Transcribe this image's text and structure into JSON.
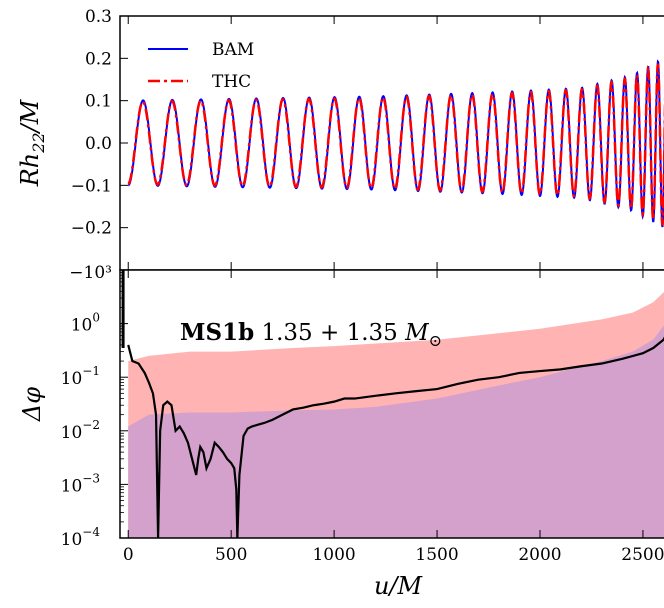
{
  "chart_data": [
    {
      "type": "line",
      "panel": "top",
      "xlabel": "",
      "ylabel": "Rh22/M",
      "ylabel_main": "Rh",
      "ylabel_sub": "22",
      "ylabel_tail": "/M",
      "xlim": [
        -40,
        2680
      ],
      "ylim": [
        -0.3,
        0.3
      ],
      "yticks": [
        {
          "v": 0.3,
          "label": "0.3"
        },
        {
          "v": 0.2,
          "label": "0.2"
        },
        {
          "v": 0.1,
          "label": "0.1"
        },
        {
          "v": 0.0,
          "label": "0.0"
        },
        {
          "v": -0.1,
          "label": "−0.1"
        },
        {
          "v": -0.2,
          "label": "−0.2"
        }
      ],
      "legend": {
        "position": "upper-left"
      },
      "series": [
        {
          "name": "BAM",
          "color": "#0000ff",
          "style": "solid"
        },
        {
          "name": "THC",
          "color": "#ff0000",
          "style": "dashdot"
        }
      ],
      "waveform": {
        "x_start": 0,
        "x_end": 2665,
        "initial_cycle_period": 145,
        "amplitude_points": [
          [
            0,
            0.1
          ],
          [
            600,
            0.105
          ],
          [
            1200,
            0.11
          ],
          [
            1800,
            0.12
          ],
          [
            2200,
            0.13
          ],
          [
            2450,
            0.16
          ],
          [
            2600,
            0.2
          ],
          [
            2640,
            0.22
          ],
          [
            2665,
            0.05
          ]
        ]
      }
    },
    {
      "type": "line",
      "panel": "bottom",
      "xlabel": "u/M",
      "ylabel": "Δφ",
      "yscale": "log",
      "xlim": [
        -40,
        2680
      ],
      "ylim": [
        0.0001,
        10
      ],
      "xticks": [
        {
          "v": 0,
          "label": "0"
        },
        {
          "v": 500,
          "label": "500"
        },
        {
          "v": 1000,
          "label": "1000"
        },
        {
          "v": 1500,
          "label": "1500"
        },
        {
          "v": 2000,
          "label": "2000"
        },
        {
          "v": 2500,
          "label": "2500"
        }
      ],
      "yticks": [
        {
          "v": 1,
          "base": "10",
          "exp": "0"
        },
        {
          "v": 0.1,
          "base": "10",
          "exp": "−1"
        },
        {
          "v": 0.01,
          "base": "10",
          "exp": "−2"
        },
        {
          "v": 0.001,
          "base": "10",
          "exp": "−3"
        },
        {
          "v": 0.0001,
          "base": "10",
          "exp": "−4"
        }
      ],
      "top_overlap_label": "−10³",
      "annotation": {
        "bold": "MS1b",
        "rest": " 1.35 + 1.35 ",
        "unit": "M",
        "unit_sub": "⊙"
      },
      "bands": [
        {
          "name": "",
          "color": "#ffb3b3",
          "x": [
            0,
            100,
            300,
            500,
            800,
            1000,
            1500,
            2000,
            2300,
            2450,
            2550,
            2620,
            2650
          ],
          "upper": [
            0.2,
            0.25,
            0.3,
            0.3,
            0.35,
            0.38,
            0.5,
            0.8,
            1.2,
            1.6,
            2.5,
            4.5,
            6.0
          ]
        },
        {
          "name": "",
          "color": "#d4a0cc",
          "x": [
            0,
            100,
            300,
            500,
            800,
            1000,
            1200,
            1500,
            1800,
            2000,
            2300,
            2450,
            2550,
            2600,
            2630,
            2650
          ],
          "upper": [
            0.012,
            0.02,
            0.022,
            0.022,
            0.024,
            0.025,
            0.028,
            0.04,
            0.07,
            0.1,
            0.2,
            0.3,
            0.5,
            0.9,
            1.5,
            1.8
          ]
        }
      ],
      "series": [
        {
          "name": "",
          "color": "#000000",
          "x": [
            0,
            20,
            50,
            80,
            100,
            120,
            135,
            145,
            155,
            170,
            190,
            210,
            230,
            250,
            270,
            290,
            310,
            330,
            340,
            350,
            365,
            380,
            400,
            420,
            440,
            460,
            480,
            500,
            515,
            525,
            530,
            540,
            560,
            580,
            600,
            630,
            660,
            700,
            750,
            800,
            850,
            900,
            950,
            1000,
            1050,
            1100,
            1200,
            1300,
            1400,
            1500,
            1600,
            1700,
            1800,
            1900,
            2000,
            2100,
            2200,
            2300,
            2400,
            2500,
            2550,
            2600,
            2620,
            2640,
            2650,
            2660
          ],
          "y": [
            0.4,
            0.2,
            0.18,
            0.12,
            0.08,
            0.05,
            0.02,
            0.0001,
            0.01,
            0.03,
            0.035,
            0.03,
            0.01,
            0.012,
            0.009,
            0.006,
            0.003,
            0.0015,
            0.003,
            0.005,
            0.004,
            0.002,
            0.003,
            0.006,
            0.005,
            0.004,
            0.003,
            0.0025,
            0.002,
            0.0008,
            0.0001,
            0.0015,
            0.008,
            0.011,
            0.012,
            0.013,
            0.014,
            0.016,
            0.02,
            0.025,
            0.027,
            0.03,
            0.032,
            0.035,
            0.04,
            0.04,
            0.045,
            0.05,
            0.055,
            0.06,
            0.075,
            0.09,
            0.1,
            0.12,
            0.13,
            0.14,
            0.16,
            0.18,
            0.22,
            0.28,
            0.35,
            0.5,
            0.7,
            1.0,
            1.2,
            0.06
          ]
        }
      ]
    }
  ]
}
